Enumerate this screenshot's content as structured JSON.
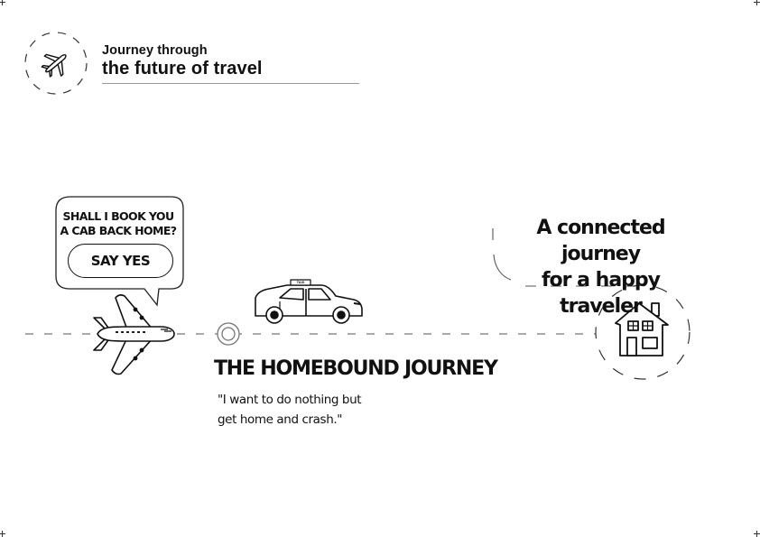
{
  "header": {
    "subtitle": "Journey through",
    "title": "the future of travel"
  },
  "bubble": {
    "question": "SHALL I BOOK YOU A CAB BACK HOME?",
    "button_label": "SAY YES"
  },
  "stage": {
    "title": "THE HOMEBOUND JOURNEY",
    "quote_line1": "\"I want to do nothing but",
    "quote_line2": "get home and crash.\""
  },
  "tagline": {
    "line1": "A connected journey",
    "line2": "for a happy traveler"
  },
  "taxi": {
    "roof_sign": "TAXI"
  },
  "icons": [
    "airplane-badge-icon",
    "airplane-icon",
    "timeline-node-icon",
    "taxi-icon",
    "house-icon"
  ]
}
